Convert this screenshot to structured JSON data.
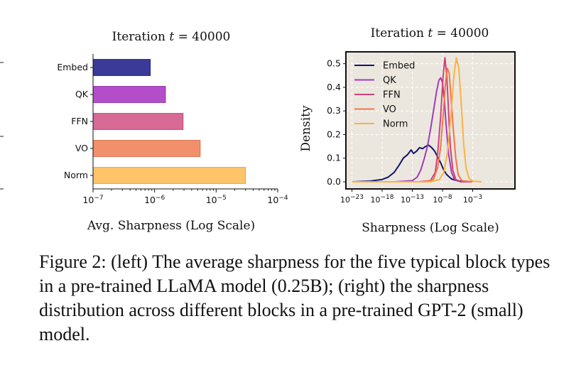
{
  "caption": "Figure 2: (left) The average sharpness for the five typical block types in a pre-trained LLaMA model (0.25B); (right) the sharpness distribution across different blocks in a pre-trained GPT-2 (small) model.",
  "left_chart": {
    "title_prefix": "Iteration ",
    "title_var": "t",
    "title_suffix": " = 40000",
    "xlabel": "Avg. Sharpness (Log Scale)",
    "xtick_labels": [
      {
        "base": "10",
        "exp": "−7"
      },
      {
        "base": "10",
        "exp": "−6"
      },
      {
        "base": "10",
        "exp": "−5"
      },
      {
        "base": "10",
        "exp": "−4"
      }
    ]
  },
  "right_chart": {
    "title_prefix": "Iteration ",
    "title_var": "t",
    "title_suffix": " = 40000",
    "xlabel": "Sharpness (Log Scale)",
    "ylabel": "Density",
    "ytick_labels": [
      "0.0",
      "0.1",
      "0.2",
      "0.3",
      "0.4",
      "0.5"
    ],
    "xtick_labels": [
      {
        "base": "10",
        "exp": "−23"
      },
      {
        "base": "10",
        "exp": "−18"
      },
      {
        "base": "10",
        "exp": "−13"
      },
      {
        "base": "10",
        "exp": "−8"
      },
      {
        "base": "10",
        "exp": "−3"
      }
    ]
  },
  "chart_data": [
    {
      "type": "bar",
      "orientation": "horizontal",
      "title": "Iteration t = 40000",
      "xlabel": "Avg. Sharpness (Log Scale)",
      "ylabel": "",
      "x_scale": "log",
      "xlim": [
        1e-07,
        0.0001
      ],
      "categories": [
        "Embed",
        "QK",
        "FFN",
        "VO",
        "Norm"
      ],
      "values": [
        8.5e-07,
        1.5e-06,
        2.9e-06,
        5.5e-06,
        3e-05
      ],
      "colors": [
        "#3b3a98",
        "#b44dc9",
        "#d86a96",
        "#f2906b",
        "#fdc46a"
      ],
      "edge_colors": [
        "#24237a",
        "#932fa8",
        "#b94a78",
        "#d86d4a",
        "#e9a53f"
      ]
    },
    {
      "type": "line",
      "title": "Iteration t = 40000",
      "xlabel": "Sharpness (Log Scale)",
      "ylabel": "Density",
      "x_scale": "log",
      "xlim_log10": [
        -24,
        4
      ],
      "ylim": [
        -0.03,
        0.55
      ],
      "grid": true,
      "grid_style": "dashed",
      "background": "#ebe7de",
      "legend_position": "top-left",
      "series": [
        {
          "name": "Embed",
          "color": "#14146e",
          "points": [
            [
              -23,
              0.0
            ],
            [
              -20,
              0.003
            ],
            [
              -18,
              0.01
            ],
            [
              -17,
              0.02
            ],
            [
              -16,
              0.04
            ],
            [
              -15.2,
              0.07
            ],
            [
              -14.5,
              0.1
            ],
            [
              -13.8,
              0.115
            ],
            [
              -13.2,
              0.135
            ],
            [
              -12.8,
              0.12
            ],
            [
              -12.3,
              0.13
            ],
            [
              -11.8,
              0.145
            ],
            [
              -11.3,
              0.14
            ],
            [
              -10.8,
              0.15
            ],
            [
              -10.3,
              0.155
            ],
            [
              -9.8,
              0.145
            ],
            [
              -9.3,
              0.13
            ],
            [
              -8.8,
              0.105
            ],
            [
              -8.3,
              0.08
            ],
            [
              -7.8,
              0.05
            ],
            [
              -7.3,
              0.03
            ],
            [
              -6.5,
              0.012
            ],
            [
              -5.5,
              0.004
            ],
            [
              -3,
              0.0
            ]
          ]
        },
        {
          "name": "QK",
          "color": "#a23bb8",
          "points": [
            [
              -23,
              0.0
            ],
            [
              -16,
              0.0
            ],
            [
              -13,
              0.005
            ],
            [
              -12.2,
              0.02
            ],
            [
              -11.6,
              0.05
            ],
            [
              -11.0,
              0.1
            ],
            [
              -10.5,
              0.15
            ],
            [
              -10.0,
              0.22
            ],
            [
              -9.5,
              0.3
            ],
            [
              -9.0,
              0.38
            ],
            [
              -8.6,
              0.43
            ],
            [
              -8.3,
              0.44
            ],
            [
              -8.0,
              0.42
            ],
            [
              -7.7,
              0.35
            ],
            [
              -7.4,
              0.24
            ],
            [
              -7.0,
              0.12
            ],
            [
              -6.5,
              0.04
            ],
            [
              -6.0,
              0.01
            ],
            [
              -5.0,
              0.0
            ],
            [
              -3,
              0.0
            ]
          ]
        },
        {
          "name": "FFN",
          "color": "#d1417e",
          "points": [
            [
              -23,
              0.0
            ],
            [
              -12,
              0.0
            ],
            [
              -10,
              0.005
            ],
            [
              -9.2,
              0.04
            ],
            [
              -8.8,
              0.12
            ],
            [
              -8.3,
              0.28
            ],
            [
              -7.9,
              0.45
            ],
            [
              -7.6,
              0.525
            ],
            [
              -7.3,
              0.45
            ],
            [
              -7.0,
              0.3
            ],
            [
              -6.7,
              0.15
            ],
            [
              -6.3,
              0.05
            ],
            [
              -5.8,
              0.01
            ],
            [
              -5.0,
              0.0
            ],
            [
              -3,
              0.0
            ]
          ]
        },
        {
          "name": "VO",
          "color": "#ef7748",
          "points": [
            [
              -23,
              0.0
            ],
            [
              -11,
              0.0
            ],
            [
              -9.5,
              0.01
            ],
            [
              -8.8,
              0.06
            ],
            [
              -8.3,
              0.15
            ],
            [
              -7.9,
              0.28
            ],
            [
              -7.5,
              0.42
            ],
            [
              -7.2,
              0.48
            ],
            [
              -6.9,
              0.46
            ],
            [
              -6.6,
              0.36
            ],
            [
              -6.2,
              0.22
            ],
            [
              -5.8,
              0.1
            ],
            [
              -5.4,
              0.03
            ],
            [
              -4.8,
              0.005
            ],
            [
              -3,
              0.0
            ]
          ]
        },
        {
          "name": "Norm",
          "color": "#fbb242",
          "points": [
            [
              -23,
              0.0
            ],
            [
              -10,
              0.0
            ],
            [
              -8.5,
              0.01
            ],
            [
              -7.8,
              0.04
            ],
            [
              -7.2,
              0.12
            ],
            [
              -6.6,
              0.28
            ],
            [
              -6.1,
              0.45
            ],
            [
              -5.7,
              0.525
            ],
            [
              -5.3,
              0.48
            ],
            [
              -4.9,
              0.33
            ],
            [
              -4.5,
              0.16
            ],
            [
              -4.1,
              0.06
            ],
            [
              -3.6,
              0.015
            ],
            [
              -3.0,
              0.003
            ],
            [
              -1.5,
              0.0
            ]
          ]
        }
      ]
    }
  ]
}
